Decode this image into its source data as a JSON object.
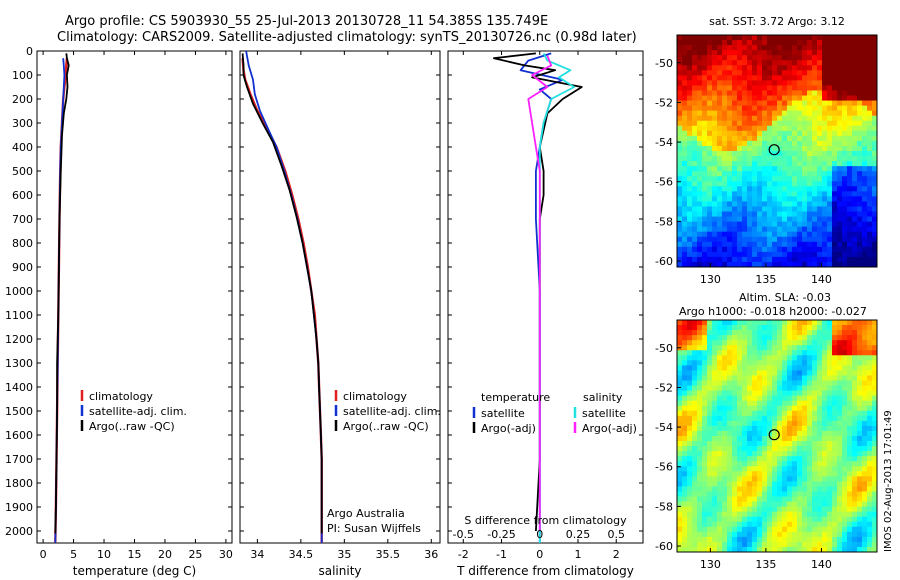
{
  "header": {
    "title_line1": "Argo profile: CS 5903930_55 25-Jul-2013 20130728_11 54.385S 135.749E",
    "title_line2": "Climatology: CARS2009. Satellite-adjusted climatology: synTS_20130726.nc (0.98d later)"
  },
  "colors": {
    "climatology": "#e02020",
    "satellite": "#1030d0",
    "argo": "#000000",
    "satellite_salinity": "#20e0e0",
    "argo_salinity": "#ff20ff",
    "marker": "#000000"
  },
  "chart_data": [
    {
      "type": "line",
      "name": "temperature-profile",
      "xlabel": "temperature (deg C)",
      "ylabel": "",
      "xlim": [
        -1,
        31
      ],
      "ylim": [
        2050,
        0
      ],
      "xticks": [
        0,
        5,
        10,
        15,
        20,
        25,
        30
      ],
      "yticks": [
        0,
        100,
        200,
        300,
        400,
        500,
        600,
        700,
        800,
        900,
        1000,
        1100,
        1200,
        1300,
        1400,
        1500,
        1600,
        1700,
        1800,
        1900,
        2000
      ],
      "legend": [
        "climatology",
        "satellite-adj. clim.",
        "Argo(..raw -QC)"
      ],
      "legend_placement": "center",
      "series": [
        {
          "name": "climatology",
          "color": "#e02020",
          "points": [
            [
              3.9,
              30
            ],
            [
              3.8,
              60
            ],
            [
              3.7,
              100
            ],
            [
              3.5,
              150
            ],
            [
              3.3,
              200
            ],
            [
              3.1,
              300
            ],
            [
              2.9,
              400
            ],
            [
              2.8,
              500
            ],
            [
              2.7,
              700
            ],
            [
              2.6,
              900
            ],
            [
              2.5,
              1100
            ],
            [
              2.4,
              1300
            ],
            [
              2.3,
              1500
            ],
            [
              2.2,
              1700
            ],
            [
              2.1,
              1900
            ],
            [
              2.0,
              2050
            ]
          ]
        },
        {
          "name": "satellite-adj. clim.",
          "color": "#1030d0",
          "points": [
            [
              3.3,
              30
            ],
            [
              3.4,
              60
            ],
            [
              3.5,
              100
            ],
            [
              3.4,
              150
            ],
            [
              3.3,
              200
            ],
            [
              3.1,
              300
            ],
            [
              2.9,
              400
            ],
            [
              2.8,
              500
            ],
            [
              2.7,
              700
            ],
            [
              2.6,
              900
            ],
            [
              2.5,
              1100
            ],
            [
              2.4,
              1300
            ],
            [
              2.3,
              1500
            ],
            [
              2.2,
              1700
            ],
            [
              2.1,
              1900
            ],
            [
              2.0,
              2050
            ]
          ]
        },
        {
          "name": "Argo(..raw -QC)",
          "color": "#000000",
          "points": [
            [
              3.8,
              10
            ],
            [
              3.9,
              30
            ],
            [
              4.2,
              60
            ],
            [
              3.9,
              100
            ],
            [
              4.0,
              150
            ],
            [
              3.8,
              200
            ],
            [
              3.4,
              260
            ],
            [
              3.1,
              350
            ],
            [
              2.9,
              500
            ],
            [
              2.7,
              700
            ],
            [
              2.6,
              900
            ],
            [
              2.5,
              1100
            ],
            [
              2.3,
              1300
            ],
            [
              2.3,
              1500
            ],
            [
              2.2,
              1700
            ],
            [
              2.1,
              1900
            ],
            [
              2.0,
              2010
            ]
          ]
        }
      ]
    },
    {
      "type": "line",
      "name": "salinity-profile",
      "xlabel": "salinity",
      "ylabel": "",
      "xlim": [
        33.8,
        36.1
      ],
      "ylim": [
        2050,
        0
      ],
      "xticks": [
        34,
        34.5,
        35,
        35.5,
        36
      ],
      "legend": [
        "climatology",
        "satellite-adj. clim.",
        "Argo(..raw -QC)"
      ],
      "legend_placement": "center",
      "annotations": [
        "Argo Australia",
        "PI: Susan Wijffels"
      ],
      "series": [
        {
          "name": "climatology",
          "color": "#e02020",
          "points": [
            [
              33.83,
              30
            ],
            [
              33.84,
              80
            ],
            [
              33.86,
              120
            ],
            [
              33.92,
              180
            ],
            [
              34.0,
              250
            ],
            [
              34.12,
              330
            ],
            [
              34.22,
              400
            ],
            [
              34.32,
              500
            ],
            [
              34.4,
              600
            ],
            [
              34.47,
              700
            ],
            [
              34.53,
              800
            ],
            [
              34.58,
              900
            ],
            [
              34.62,
              1000
            ],
            [
              34.66,
              1100
            ],
            [
              34.68,
              1200
            ],
            [
              34.7,
              1300
            ],
            [
              34.71,
              1400
            ],
            [
              34.72,
              1500
            ],
            [
              34.73,
              1600
            ],
            [
              34.74,
              1700
            ],
            [
              34.74,
              1800
            ],
            [
              34.74,
              1900
            ],
            [
              34.74,
              2050
            ]
          ]
        },
        {
          "name": "satellite-adj. clim.",
          "color": "#1030d0",
          "points": [
            [
              33.87,
              0
            ],
            [
              33.9,
              60
            ],
            [
              33.95,
              120
            ],
            [
              33.97,
              180
            ],
            [
              34.03,
              250
            ],
            [
              34.13,
              330
            ],
            [
              34.22,
              400
            ],
            [
              34.31,
              500
            ],
            [
              34.39,
              600
            ],
            [
              34.46,
              700
            ],
            [
              34.52,
              800
            ],
            [
              34.57,
              900
            ],
            [
              34.62,
              1000
            ],
            [
              34.65,
              1100
            ],
            [
              34.68,
              1200
            ],
            [
              34.7,
              1300
            ],
            [
              34.71,
              1400
            ],
            [
              34.72,
              1500
            ],
            [
              34.73,
              1600
            ],
            [
              34.74,
              1700
            ],
            [
              34.74,
              1800
            ],
            [
              34.74,
              1900
            ],
            [
              34.74,
              2050
            ]
          ]
        },
        {
          "name": "Argo(..raw -QC)",
          "color": "#000000",
          "points": [
            [
              33.83,
              10
            ],
            [
              33.84,
              60
            ],
            [
              33.84,
              100
            ],
            [
              33.88,
              150
            ],
            [
              33.95,
              220
            ],
            [
              34.06,
              300
            ],
            [
              34.18,
              380
            ],
            [
              34.28,
              480
            ],
            [
              34.37,
              580
            ],
            [
              34.45,
              690
            ],
            [
              34.52,
              800
            ],
            [
              34.57,
              900
            ],
            [
              34.62,
              1000
            ],
            [
              34.65,
              1100
            ],
            [
              34.68,
              1200
            ],
            [
              34.7,
              1300
            ],
            [
              34.71,
              1400
            ],
            [
              34.72,
              1500
            ],
            [
              34.73,
              1600
            ],
            [
              34.74,
              1700
            ],
            [
              34.74,
              1800
            ],
            [
              34.74,
              1900
            ],
            [
              34.74,
              2010
            ]
          ]
        }
      ]
    },
    {
      "type": "line",
      "name": "difference-profile",
      "xlabel": "T difference from climatology",
      "xlabel_top": "S difference from climatology",
      "ylabel": "",
      "xlim": [
        -2.4,
        2.7
      ],
      "ylim": [
        2050,
        0
      ],
      "xticks": [
        -2,
        -1,
        0,
        1,
        2
      ],
      "xticks_top": [
        -0.5,
        -0.25,
        0,
        0.25,
        0.5
      ],
      "legend_temperature_title": "temperature",
      "legend_salinity_title": "salinity",
      "legend_temperature": [
        "satellite",
        "Argo(-adj)"
      ],
      "legend_salinity": [
        "satellite",
        "Argo(-adj)"
      ],
      "series": [
        {
          "name": "temperature satellite",
          "color": "#1030d0",
          "points": [
            [
              0.3,
              10
            ],
            [
              -0.3,
              40
            ],
            [
              -0.5,
              80
            ],
            [
              0.6,
              120
            ],
            [
              0.0,
              160
            ],
            [
              0.3,
              200
            ],
            [
              0.1,
              300
            ],
            [
              0.0,
              400
            ],
            [
              -0.1,
              500
            ],
            [
              -0.1,
              700
            ],
            [
              0.0,
              1000
            ],
            [
              0.0,
              1300
            ],
            [
              0.0,
              1700
            ],
            [
              0.0,
              2050
            ]
          ]
        },
        {
          "name": "temperature Argo(-adj)",
          "color": "#000000",
          "points": [
            [
              -0.1,
              10
            ],
            [
              -1.2,
              30
            ],
            [
              -0.4,
              60
            ],
            [
              0.4,
              80
            ],
            [
              -0.2,
              110
            ],
            [
              1.1,
              150
            ],
            [
              0.6,
              200
            ],
            [
              0.2,
              260
            ],
            [
              0.1,
              330
            ],
            [
              0.0,
              400
            ],
            [
              0.1,
              500
            ],
            [
              0.1,
              600
            ],
            [
              0.0,
              700
            ],
            [
              0.0,
              1000
            ],
            [
              0.0,
              1300
            ],
            [
              0.0,
              1700
            ],
            [
              -0.1,
              2000
            ]
          ]
        },
        {
          "name": "salinity satellite",
          "color": "#20e0e0",
          "points": [
            [
              0.1,
              10
            ],
            [
              0.2,
              40
            ],
            [
              0.8,
              80
            ],
            [
              0.5,
              110
            ],
            [
              0.9,
              150
            ],
            [
              0.3,
              200
            ],
            [
              0.1,
              300
            ],
            [
              0.0,
              400
            ],
            [
              0.0,
              600
            ],
            [
              0.0,
              900
            ],
            [
              0.0,
              1300
            ],
            [
              0.0,
              1700
            ],
            [
              0.0,
              2050
            ]
          ]
        },
        {
          "name": "salinity Argo(-adj)",
          "color": "#ff20ff",
          "points": [
            [
              0.2,
              20
            ],
            [
              0.3,
              60
            ],
            [
              -0.2,
              100
            ],
            [
              0.2,
              150
            ],
            [
              -0.3,
              200
            ],
            [
              -0.2,
              300
            ],
            [
              -0.1,
              400
            ],
            [
              0.0,
              500
            ],
            [
              0.0,
              700
            ],
            [
              0.0,
              1000
            ],
            [
              0.0,
              1400
            ],
            [
              0.0,
              1700
            ],
            [
              0.0,
              2000
            ]
          ]
        }
      ]
    },
    {
      "type": "heatmap",
      "name": "sst-map",
      "title": "sat. SST: 3.72  Argo: 3.12",
      "xlim": [
        127,
        145
      ],
      "ylim": [
        -60.3,
        -48.6
      ],
      "xticks": [
        130,
        135,
        140
      ],
      "yticks": [
        -50,
        -52,
        -54,
        -56,
        -58,
        -60
      ],
      "marker": {
        "lon": 135.749,
        "lat": -54.385
      }
    },
    {
      "type": "heatmap",
      "name": "sla-map",
      "title": "Altim. SLA: -0.03",
      "subtitle": "Argo h1000: -0.018  h2000: -0.027",
      "xlim": [
        127,
        145
      ],
      "ylim": [
        -60.3,
        -48.6
      ],
      "xticks": [
        130,
        135,
        140
      ],
      "yticks": [
        -50,
        -52,
        -54,
        -56,
        -58,
        -60
      ],
      "marker": {
        "lon": 135.749,
        "lat": -54.385
      },
      "side_label": "IMOS 02-Aug-2013 17:01:49"
    }
  ]
}
